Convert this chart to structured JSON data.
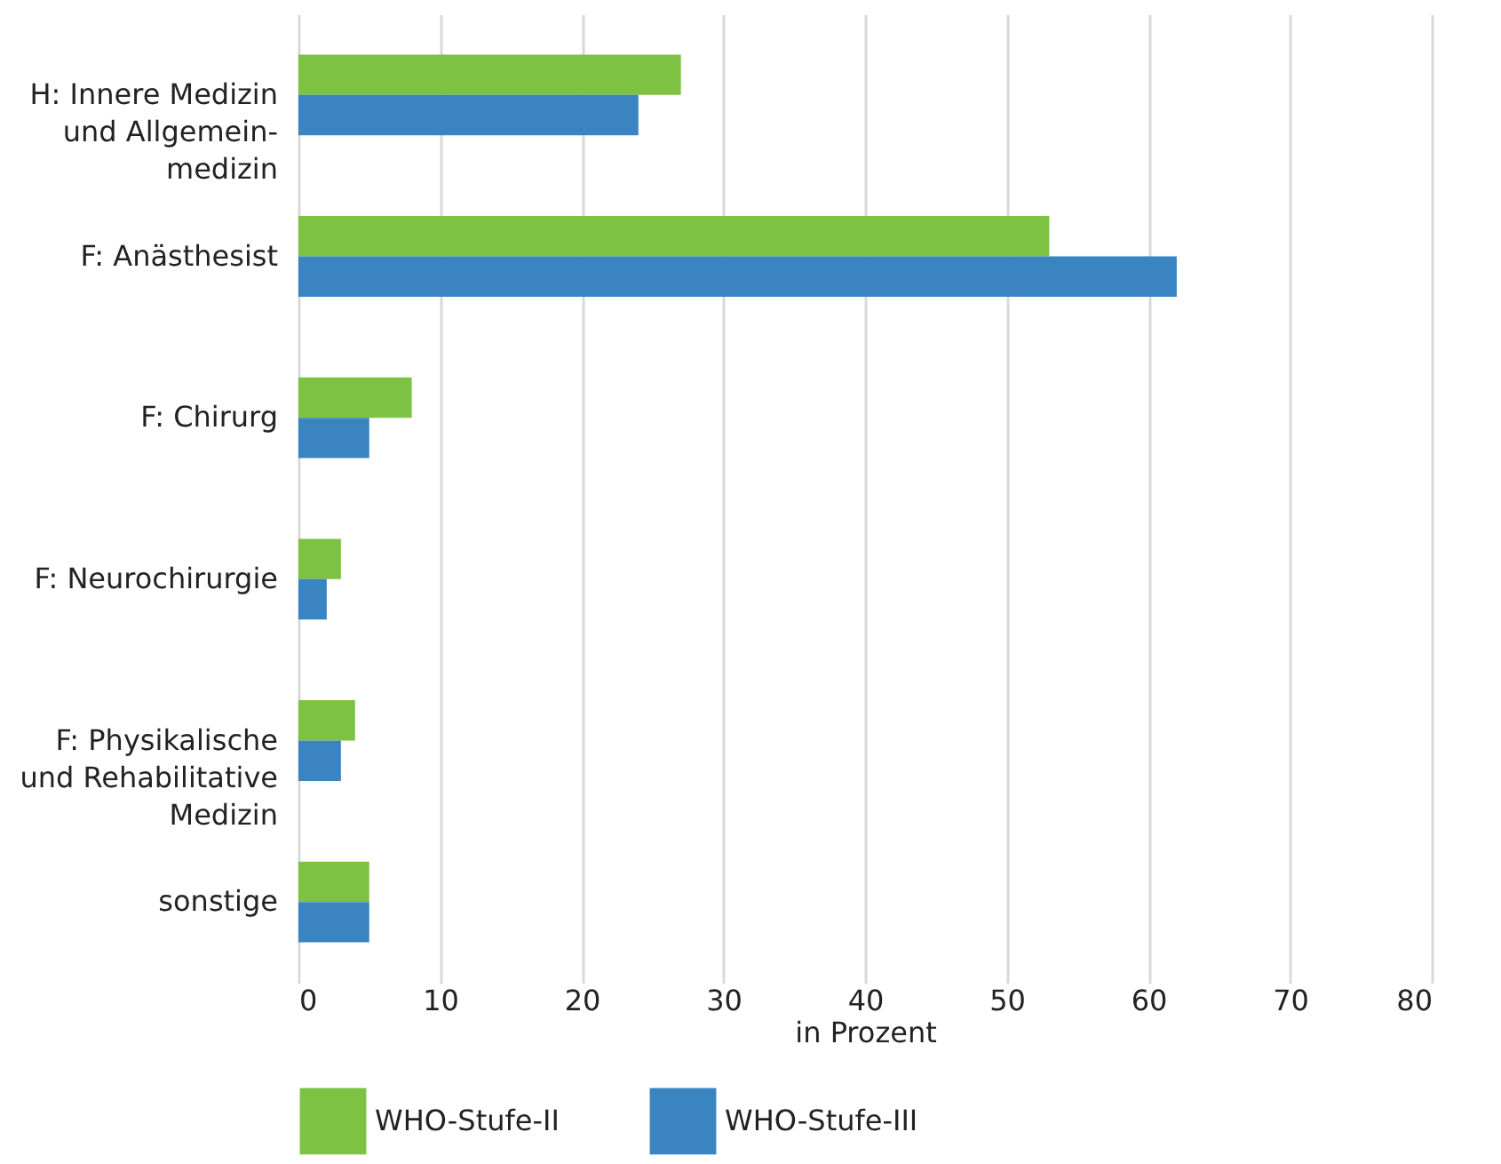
{
  "chart_data": {
    "type": "bar",
    "orientation": "horizontal",
    "xlabel": "in Prozent",
    "categories": [
      "H: Innere Medizin\nund Allgemein-\nmedizin",
      "F: Anästhesist",
      "F: Chirurg",
      "F: Neurochirurgie",
      "F: Physikalische\nund Rehabilitative\nMedizin",
      "sonstige"
    ],
    "series": [
      {
        "name": "WHO-Stufe-II",
        "color": "#7dc242",
        "values": [
          27,
          53,
          8,
          3,
          4,
          5
        ]
      },
      {
        "name": "WHO-Stufe-III",
        "color": "#3a84c1",
        "values": [
          24,
          62,
          5,
          2,
          3,
          5
        ]
      }
    ],
    "xlim": [
      0,
      80
    ],
    "xticks": [
      0,
      10,
      20,
      30,
      40,
      50,
      60,
      70,
      80
    ],
    "grid": "x",
    "legend": "bottom"
  }
}
